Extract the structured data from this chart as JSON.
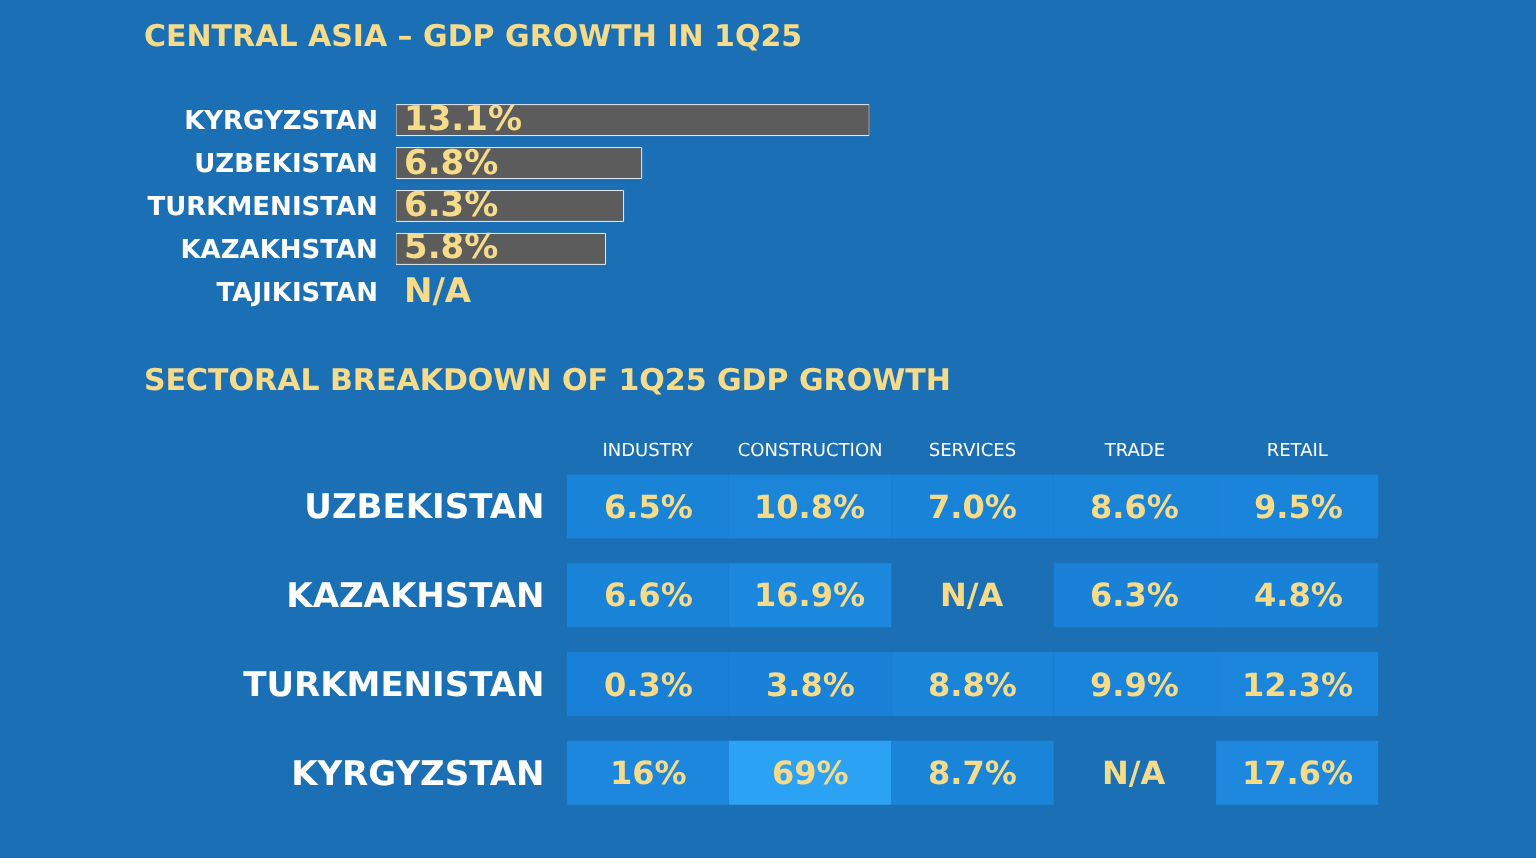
{
  "chart_data": [
    {
      "type": "bar",
      "orientation": "horizontal",
      "title": "CENTRAL ASIA – GDP GROWTH IN 1Q25",
      "categories": [
        "KYRGYZSTAN",
        "UZBEKISTAN",
        "TURKMENISTAN",
        "KAZAKHSTAN",
        "TAJIKISTAN"
      ],
      "values": [
        13.1,
        6.8,
        6.3,
        5.8,
        null
      ],
      "color": "#5c5c5c",
      "value_labels": [
        "13.1%",
        "6.8%",
        "6.3%",
        "5.8%",
        "N/A"
      ]
    },
    {
      "type": "heatmap",
      "title": "SECTORAL BREAKDOWN OF 1Q25 GDP GROWTH",
      "categories": [
        "INDUSTRY",
        "CONSTRUCTION",
        "SERVICES",
        "TRADE",
        "RETAIL"
      ],
      "y_categories": [
        "UZBEKISTAN",
        "KAZAKHSTAN",
        "TURKMENISTAN",
        "KYRGYZSTAN"
      ],
      "cells": [
        [
          6.5,
          10.8,
          7.0,
          8.6,
          9.5
        ],
        [
          6.6,
          16.9,
          null,
          6.3,
          4.8
        ],
        [
          0.3,
          3.8,
          8.8,
          9.9,
          12.3
        ],
        [
          16,
          69,
          8.7,
          null,
          17.6
        ]
      ],
      "cell_labels": [
        [
          "6.5%",
          "10.8%",
          "7.0%",
          "8.6%",
          "9.5%"
        ],
        [
          "6.6%",
          "16.9%",
          "N/A",
          "6.3%",
          "4.8%"
        ],
        [
          "0.3%",
          "3.8%",
          "8.8%",
          "9.9%",
          "12.3%"
        ],
        [
          "16%",
          "69%",
          "8.7%",
          "N/A",
          "17.6%"
        ]
      ]
    }
  ]
}
